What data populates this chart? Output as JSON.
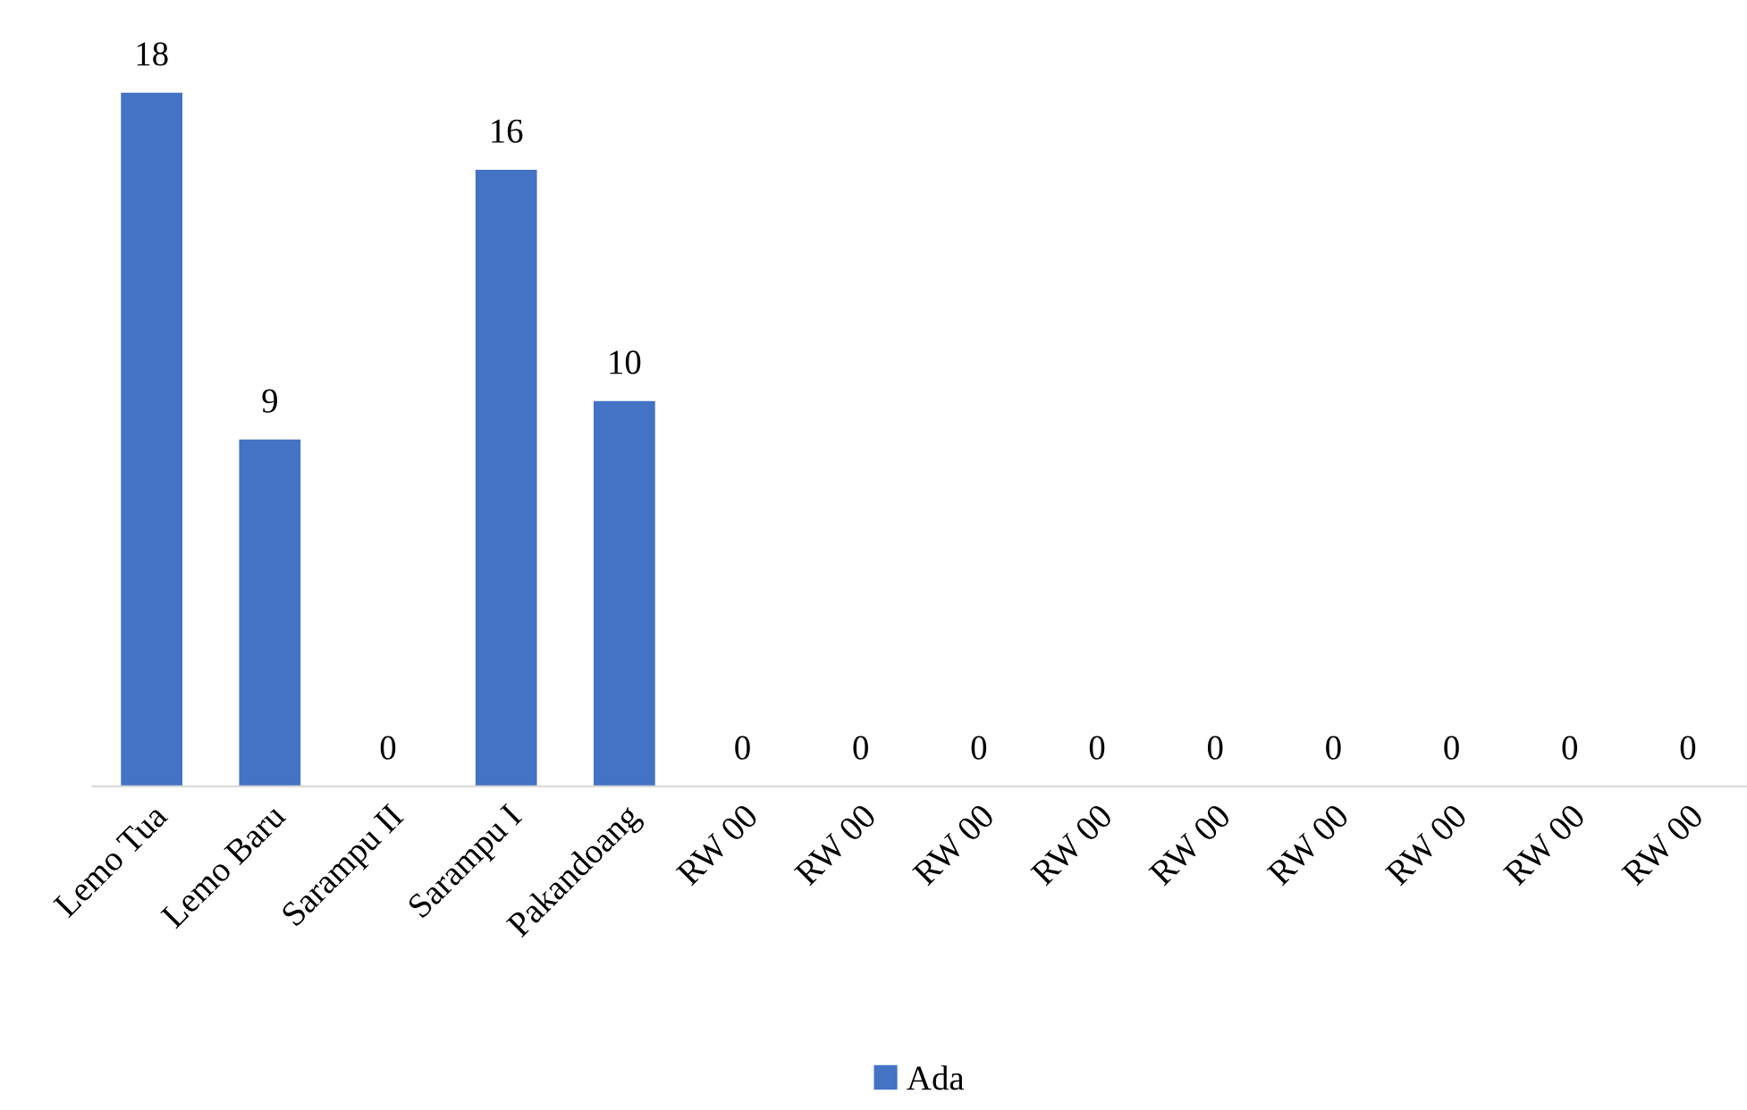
{
  "chart_data": {
    "type": "bar",
    "categories": [
      "Lemo Tua",
      "Lemo Baru",
      "Sarampu II",
      "Sarampu I",
      "Pakandoang",
      "RW 00",
      "RW 00",
      "RW 00",
      "RW 00",
      "RW 00",
      "RW 00",
      "RW 00",
      "RW 00",
      "RW 00"
    ],
    "series": [
      {
        "name": "Ada",
        "color": "#4472c4",
        "values": [
          18,
          9,
          0,
          16,
          10,
          0,
          0,
          0,
          0,
          0,
          0,
          0,
          0,
          0
        ]
      }
    ],
    "data_labels": true,
    "legend": "bottom",
    "grid": false
  }
}
